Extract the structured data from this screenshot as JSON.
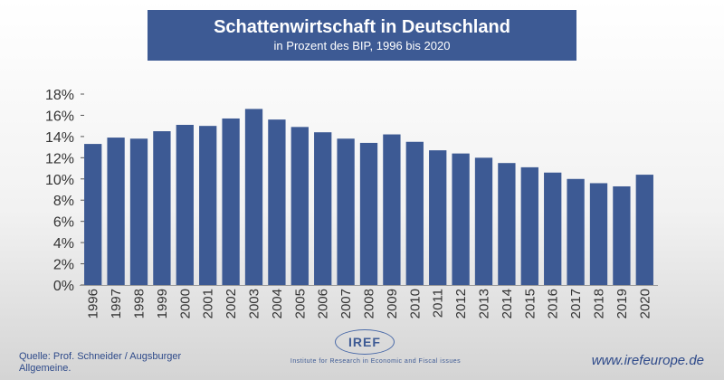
{
  "header": {
    "title": "Schattenwirtschaft in Deutschland",
    "subtitle": "in Prozent des BIP, 1996 bis 2020"
  },
  "chart_data": {
    "type": "bar",
    "title": "Schattenwirtschaft in Deutschland",
    "subtitle": "in Prozent des BIP, 1996 bis 2020",
    "xlabel": "",
    "ylabel": "",
    "categories": [
      "1996",
      "1997",
      "1998",
      "1999",
      "2000",
      "2001",
      "2002",
      "2003",
      "2004",
      "2005",
      "2006",
      "2007",
      "2008",
      "2009",
      "2010",
      "2011",
      "2012",
      "2013",
      "2014",
      "2015",
      "2016",
      "2017",
      "2018",
      "2019",
      "2020"
    ],
    "values": [
      13.3,
      13.9,
      13.8,
      14.5,
      15.1,
      15.0,
      15.7,
      16.6,
      15.6,
      14.9,
      14.4,
      13.8,
      13.4,
      14.2,
      13.5,
      12.7,
      12.4,
      12.0,
      11.5,
      11.1,
      10.6,
      10.0,
      9.6,
      9.3,
      10.4
    ],
    "yticks": [
      "0%",
      "2%",
      "4%",
      "6%",
      "8%",
      "10%",
      "12%",
      "14%",
      "16%",
      "18%"
    ],
    "ylim": [
      0,
      18
    ],
    "grid": false,
    "legend": "none",
    "bar_color": "#3d5a94"
  },
  "footer": {
    "source": "Quelle: Prof. Schneider / Augsburger Allgemeine.",
    "logo_text": "IREF",
    "logo_tagline": "Institute for Research in Economic and Fiscal issues",
    "url": "www.irefeurope.de"
  }
}
